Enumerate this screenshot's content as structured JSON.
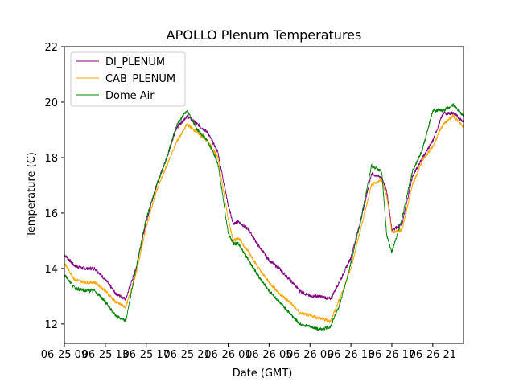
{
  "chart_data": {
    "type": "line",
    "title": "APOLLO Plenum Temperatures",
    "xlabel": "Date (GMT)",
    "ylabel": "Temperature (C)",
    "xlim": [
      0,
      39
    ],
    "ylim": [
      11.3,
      22
    ],
    "yticks": [
      12,
      14,
      16,
      18,
      20,
      22
    ],
    "xticks": [
      {
        "pos": 0,
        "label": "06-25 09"
      },
      {
        "pos": 4,
        "label": "06-25 13"
      },
      {
        "pos": 8,
        "label": "06-25 17"
      },
      {
        "pos": 12,
        "label": "06-25 21"
      },
      {
        "pos": 16,
        "label": "06-26 01"
      },
      {
        "pos": 20,
        "label": "06-26 05"
      },
      {
        "pos": 24,
        "label": "06-26 09"
      },
      {
        "pos": 28,
        "label": "06-26 13"
      },
      {
        "pos": 32,
        "label": "06-26 17"
      },
      {
        "pos": 36,
        "label": "06-26 21"
      }
    ],
    "grid": false,
    "legend_position": "top-left",
    "series": [
      {
        "name": "DI_PLENUM",
        "color": "#800080",
        "x": [
          0,
          1,
          2,
          3,
          4,
          5,
          6,
          7,
          8,
          9,
          10,
          11,
          12,
          13,
          14,
          15,
          16,
          16.5,
          17,
          18,
          19,
          20,
          21,
          22,
          23,
          24,
          25,
          26,
          27,
          28,
          29,
          30,
          31,
          31.5,
          32,
          33,
          34,
          35,
          36,
          37,
          38,
          39
        ],
        "y": [
          14.5,
          14.1,
          14.0,
          14.0,
          13.6,
          13.1,
          12.9,
          14.0,
          15.7,
          17.0,
          18.0,
          19.1,
          19.5,
          19.2,
          18.9,
          18.2,
          16.3,
          15.6,
          15.7,
          15.4,
          14.8,
          14.3,
          14.0,
          13.6,
          13.2,
          13.0,
          13.0,
          12.9,
          13.6,
          14.4,
          15.8,
          17.4,
          17.3,
          16.8,
          15.4,
          15.6,
          17.3,
          18.0,
          18.6,
          19.6,
          19.6,
          19.3
        ]
      },
      {
        "name": "CAB_PLENUM",
        "color": "#FFA500",
        "x": [
          0,
          1,
          2,
          3,
          4,
          5,
          6,
          7,
          8,
          9,
          10,
          11,
          12,
          13,
          14,
          15,
          16,
          16.5,
          17,
          18,
          19,
          20,
          21,
          22,
          23,
          24,
          25,
          26,
          27,
          28,
          29,
          30,
          31,
          31.5,
          32,
          33,
          34,
          35,
          36,
          37,
          38,
          39
        ],
        "y": [
          14.2,
          13.6,
          13.5,
          13.5,
          13.2,
          12.8,
          12.6,
          13.8,
          15.5,
          16.8,
          17.7,
          18.6,
          19.2,
          18.9,
          18.6,
          18.0,
          15.8,
          15.0,
          15.1,
          14.6,
          14.0,
          13.5,
          13.1,
          12.8,
          12.4,
          12.3,
          12.2,
          12.1,
          13.0,
          14.0,
          15.5,
          17.0,
          17.2,
          16.6,
          15.3,
          15.4,
          17.0,
          17.9,
          18.4,
          19.2,
          19.5,
          19.1
        ]
      },
      {
        "name": "Dome Air",
        "color": "#008000",
        "x": [
          0,
          1,
          2,
          3,
          4,
          5,
          6,
          7,
          8,
          9,
          10,
          11,
          12,
          13,
          14,
          15,
          16,
          16.5,
          17,
          18,
          19,
          20,
          21,
          22,
          23,
          24,
          25,
          26,
          27,
          28,
          29,
          30,
          31,
          31.5,
          32,
          33,
          34,
          35,
          36,
          37,
          38,
          39
        ],
        "y": [
          13.8,
          13.3,
          13.2,
          13.2,
          12.8,
          12.3,
          12.1,
          14.0,
          15.8,
          17.0,
          18.0,
          19.2,
          19.7,
          19.0,
          18.6,
          17.8,
          15.3,
          14.9,
          14.9,
          14.3,
          13.7,
          13.2,
          12.8,
          12.4,
          12.0,
          11.9,
          11.8,
          11.9,
          12.8,
          14.2,
          15.8,
          17.7,
          17.5,
          15.2,
          14.6,
          15.8,
          17.5,
          18.3,
          19.7,
          19.7,
          19.9,
          19.5
        ]
      }
    ]
  }
}
